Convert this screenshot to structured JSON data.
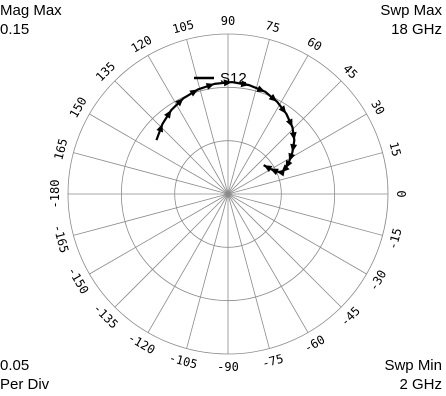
{
  "chart_data": {
    "type": "polar",
    "corner_labels": {
      "top_left_line1": "Mag Max",
      "top_left_line2": "0.15",
      "top_right_line1": "Swp Max",
      "top_right_line2": "18  GHz",
      "bottom_left_line1": "0.05",
      "bottom_left_line2": "Per Div",
      "bottom_right_line1": "Swp Min",
      "bottom_right_line2": "2  GHz"
    },
    "radial": {
      "max": 0.15,
      "per_div": 0.05,
      "divisions": 3
    },
    "angle_ticks": [
      {
        "deg": 0,
        "label": "0"
      },
      {
        "deg": 15,
        "label": "15"
      },
      {
        "deg": 30,
        "label": "30"
      },
      {
        "deg": 45,
        "label": "45"
      },
      {
        "deg": 60,
        "label": "60"
      },
      {
        "deg": 75,
        "label": "75"
      },
      {
        "deg": 90,
        "label": "90"
      },
      {
        "deg": 105,
        "label": "105"
      },
      {
        "deg": 120,
        "label": "120"
      },
      {
        "deg": 135,
        "label": "135"
      },
      {
        "deg": 150,
        "label": "150"
      },
      {
        "deg": 165,
        "label": "165"
      },
      {
        "deg": 180,
        "label": "-180"
      },
      {
        "deg": -165,
        "label": "-165"
      },
      {
        "deg": -150,
        "label": "-150"
      },
      {
        "deg": -135,
        "label": "-135"
      },
      {
        "deg": -120,
        "label": "-120"
      },
      {
        "deg": -105,
        "label": "-105"
      },
      {
        "deg": -90,
        "label": "-90"
      },
      {
        "deg": -75,
        "label": "-75"
      },
      {
        "deg": -60,
        "label": "-60"
      },
      {
        "deg": -45,
        "label": "-45"
      },
      {
        "deg": -30,
        "label": "-30"
      },
      {
        "deg": -15,
        "label": "-15"
      }
    ],
    "legend": {
      "label": "S12",
      "position": "top-center"
    },
    "series": [
      {
        "name": "S12",
        "color": "#000000",
        "points": [
          {
            "mag": 0.084,
            "ang": 143
          },
          {
            "mag": 0.09,
            "ang": 133
          },
          {
            "mag": 0.095,
            "ang": 124
          },
          {
            "mag": 0.099,
            "ang": 115
          },
          {
            "mag": 0.102,
            "ang": 106
          },
          {
            "mag": 0.104,
            "ang": 97
          },
          {
            "mag": 0.105,
            "ang": 88
          },
          {
            "mag": 0.104,
            "ang": 79
          },
          {
            "mag": 0.102,
            "ang": 70
          },
          {
            "mag": 0.098,
            "ang": 62
          },
          {
            "mag": 0.093,
            "ang": 54
          },
          {
            "mag": 0.087,
            "ang": 46
          },
          {
            "mag": 0.08,
            "ang": 39
          },
          {
            "mag": 0.072,
            "ang": 33
          },
          {
            "mag": 0.065,
            "ang": 28
          },
          {
            "mag": 0.059,
            "ang": 24
          },
          {
            "mag": 0.054,
            "ang": 22
          },
          {
            "mag": 0.05,
            "ang": 25
          },
          {
            "mag": 0.046,
            "ang": 31
          },
          {
            "mag": 0.043,
            "ang": 39
          }
        ]
      }
    ]
  }
}
